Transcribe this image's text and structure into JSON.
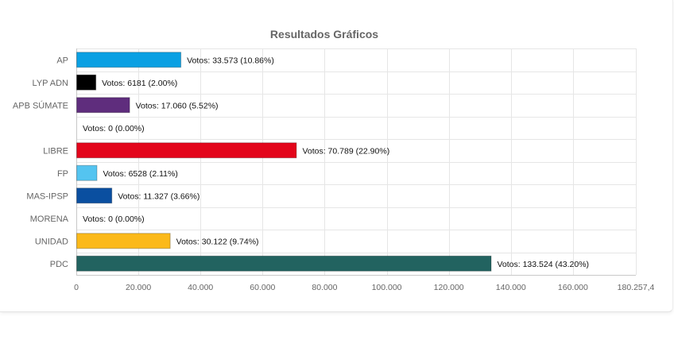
{
  "chart_data": {
    "type": "bar",
    "orientation": "horizontal",
    "title": "Resultados Gráficos",
    "xlabel": "",
    "ylabel": "",
    "xlim": [
      0,
      180257.4
    ],
    "x_ticks": [
      "0",
      "20.000",
      "40.000",
      "60.000",
      "80.000",
      "100.000",
      "120.000",
      "140.000",
      "160.000",
      "180.257,4"
    ],
    "x_tick_values": [
      0,
      20000,
      40000,
      60000,
      80000,
      100000,
      120000,
      140000,
      160000,
      180257.4
    ],
    "grid": true,
    "categories": [
      "AP",
      "LYP ADN",
      "APB SÚMATE",
      "",
      "LIBRE",
      "FP",
      "MAS-IPSP",
      "MORENA",
      "UNIDAD",
      "PDC"
    ],
    "values": [
      33573,
      6181,
      17060,
      0,
      70789,
      6528,
      11327,
      0,
      30122,
      133524
    ],
    "data_labels": [
      "Votos: 33.573 (10.86%)",
      "Votos: 6181 (2.00%)",
      "Votos: 17.060 (5.52%)",
      "Votos: 0 (0.00%)",
      "Votos: 70.789 (22.90%)",
      "Votos: 6528 (2.11%)",
      "Votos: 11.327 (3.66%)",
      "Votos: 0 (0.00%)",
      "Votos: 30.122 (9.74%)",
      "Votos: 133.524 (43.20%)"
    ],
    "colors": [
      "#0aa0e3",
      "#000000",
      "#5f2d7d",
      "#cccccc",
      "#e3051b",
      "#54c4f0",
      "#0a4fa0",
      "#8b0000",
      "#fbb91a",
      "#226360"
    ],
    "grid_color": "#e6e6e6",
    "axis_color": "#c8c8c8"
  }
}
